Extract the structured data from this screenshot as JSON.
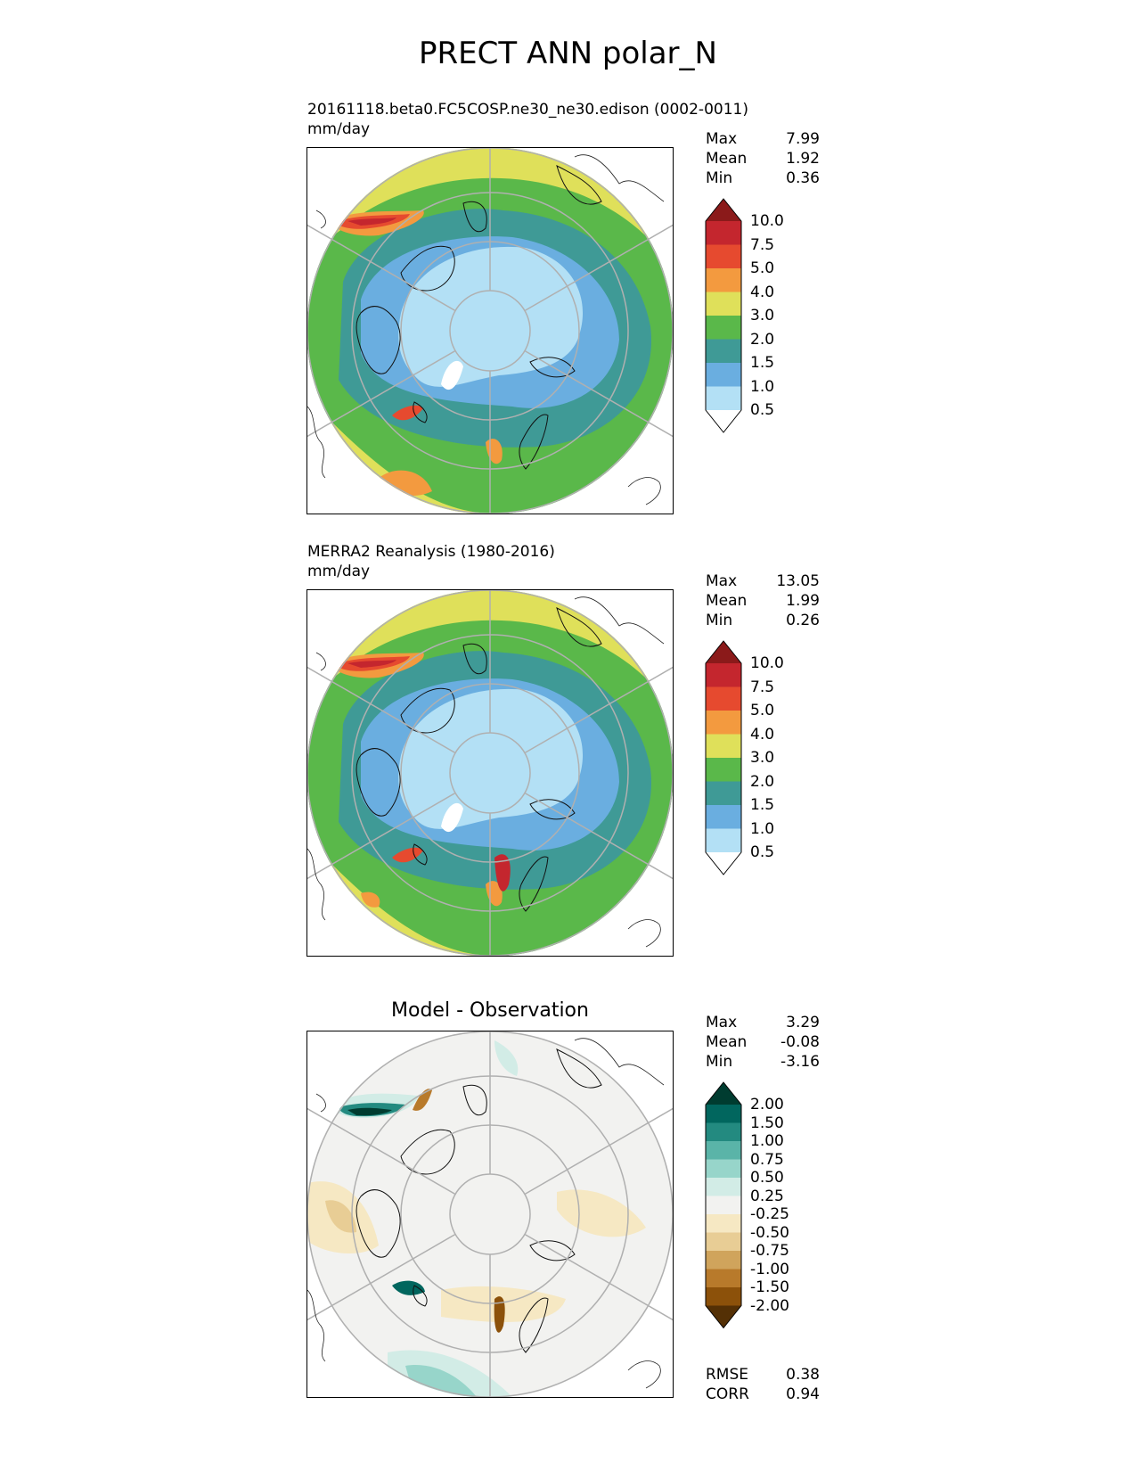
{
  "title": "PRECT ANN polar_N",
  "panels": [
    {
      "id": "test",
      "title_line1": "20161118.beta0.FC5COSP.ne30_ne30.edison (0002-0011)",
      "title_line2": "mm/day",
      "stats": [
        {
          "label": "Max",
          "value": "7.99"
        },
        {
          "label": "Mean",
          "value": "1.92"
        },
        {
          "label": "Min",
          "value": "0.36"
        }
      ],
      "levels": [
        "10.0",
        "7.5",
        "5.0",
        "4.0",
        "3.0",
        "2.0",
        "1.5",
        "1.0",
        "0.5"
      ],
      "colors": [
        "#8b1a1a",
        "#c4262e",
        "#e64a2f",
        "#f39a3f",
        "#dfe05a",
        "#5ab84a",
        "#3f9a96",
        "#6aaee0",
        "#b3e0f5",
        "#ffffff"
      ]
    },
    {
      "id": "ref",
      "title_line1": "MERRA2 Reanalysis (1980-2016)",
      "title_line2": "mm/day",
      "stats": [
        {
          "label": "Max",
          "value": "13.05"
        },
        {
          "label": "Mean",
          "value": "1.99"
        },
        {
          "label": "Min",
          "value": "0.26"
        }
      ],
      "levels": [
        "10.0",
        "7.5",
        "5.0",
        "4.0",
        "3.0",
        "2.0",
        "1.5",
        "1.0",
        "0.5"
      ],
      "colors": [
        "#8b1a1a",
        "#c4262e",
        "#e64a2f",
        "#f39a3f",
        "#dfe05a",
        "#5ab84a",
        "#3f9a96",
        "#6aaee0",
        "#b3e0f5",
        "#ffffff"
      ]
    },
    {
      "id": "diff",
      "title": "Model - Observation",
      "stats": [
        {
          "label": "Max",
          "value": "3.29"
        },
        {
          "label": "Mean",
          "value": "-0.08"
        },
        {
          "label": "Min",
          "value": "-3.16"
        }
      ],
      "levels": [
        "2.00",
        "1.50",
        "1.00",
        "0.75",
        "0.50",
        "0.25",
        "-0.25",
        "-0.50",
        "-0.75",
        "-1.00",
        "-1.50",
        "-2.00"
      ],
      "colors": [
        "#003c30",
        "#01665e",
        "#238a80",
        "#5ab4a8",
        "#97d5ca",
        "#d2ece6",
        "#f2f2f0",
        "#f6e8c3",
        "#e8cd95",
        "#d0a45c",
        "#b87a2b",
        "#8c510a",
        "#543005"
      ],
      "metrics": [
        {
          "label": "RMSE",
          "value": "0.38"
        },
        {
          "label": "CORR",
          "value": "0.94"
        }
      ]
    }
  ]
}
